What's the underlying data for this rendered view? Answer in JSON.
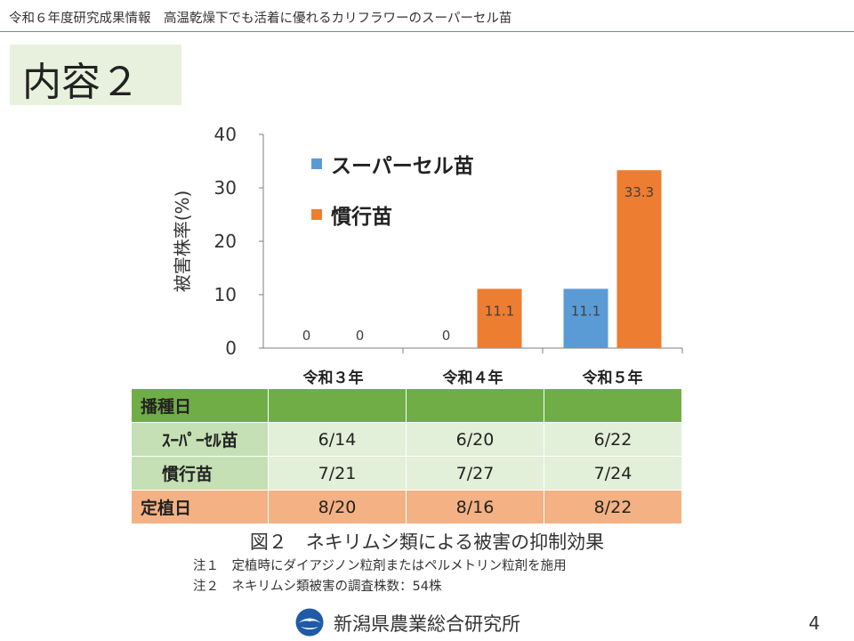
{
  "header": {
    "text": "令和６年度研究成果情報　高温乾燥下でも活着に優れるカリフラワーのスーパーセル苗"
  },
  "title": "内容２",
  "chart_data": {
    "type": "bar",
    "categories": [
      "令和３年",
      "令和４年",
      "令和５年"
    ],
    "series": [
      {
        "name": "スーパーセル苗",
        "values": [
          0,
          0,
          11.1
        ],
        "color": "#5b9bd5"
      },
      {
        "name": "慣行苗",
        "values": [
          0,
          11.1,
          33.3
        ],
        "color": "#ed7d31"
      }
    ],
    "ylabel": "被害株率(%)",
    "ylim": [
      0,
      40
    ],
    "yticks": [
      0,
      10,
      20,
      30,
      40
    ],
    "data_labels": [
      [
        "0",
        "0",
        "11.1"
      ],
      [
        "0",
        "11.1",
        "33.3"
      ]
    ],
    "legend_position": "top-left"
  },
  "table": {
    "rows": [
      {
        "label": "播種日",
        "cells": [
          "",
          "",
          ""
        ]
      },
      {
        "label": "ｽｰﾊﾟｰｾﾙ苗",
        "cells": [
          "6/14",
          "6/20",
          "6/22"
        ]
      },
      {
        "label": "慣行苗",
        "cells": [
          "7/21",
          "7/27",
          "7/24"
        ]
      },
      {
        "label": "定植日",
        "cells": [
          "8/20",
          "8/16",
          "8/22"
        ]
      }
    ]
  },
  "caption": "図２　ネキリムシ類による被害の抑制効果",
  "notes": [
    "注１　定植時にダイアジノン粒剤またはペルメトリン粒剤を施用",
    "注２　ネキリムシ類被害の調査株数：54株"
  ],
  "footer": {
    "org": "新潟県農業総合研究所",
    "page": "4"
  }
}
